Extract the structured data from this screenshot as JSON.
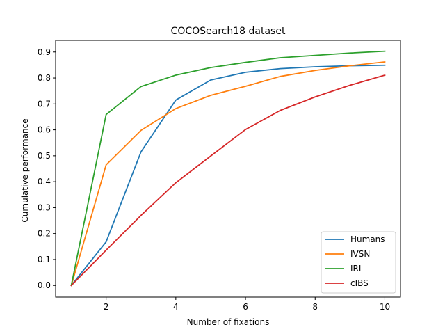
{
  "chart_data": {
    "type": "line",
    "title": "COCOSearch18 dataset",
    "xlabel": "Number of fixations",
    "ylabel": "Cumulative performance",
    "xlim": [
      0.55,
      10.45
    ],
    "ylim": [
      -0.045,
      0.945
    ],
    "xticks": [
      2,
      4,
      6,
      8,
      10
    ],
    "yticks": [
      0.0,
      0.1,
      0.2,
      0.3,
      0.4,
      0.5,
      0.6,
      0.7,
      0.8,
      0.9
    ],
    "ytick_labels": [
      "0.0",
      "0.1",
      "0.2",
      "0.3",
      "0.4",
      "0.5",
      "0.6",
      "0.7",
      "0.8",
      "0.9"
    ],
    "grid": false,
    "legend_position": "lower-right",
    "x": [
      1,
      2,
      3,
      4,
      5,
      6,
      7,
      8,
      9,
      10
    ],
    "series": [
      {
        "name": "Humans",
        "color": "#1f77b4",
        "values": [
          0.0,
          0.168,
          0.515,
          0.715,
          0.792,
          0.822,
          0.836,
          0.843,
          0.847,
          0.849
        ]
      },
      {
        "name": "IVSN",
        "color": "#ff7f0e",
        "values": [
          0.0,
          0.465,
          0.598,
          0.682,
          0.733,
          0.768,
          0.806,
          0.829,
          0.847,
          0.862
        ]
      },
      {
        "name": "IRL",
        "color": "#2ca02c",
        "values": [
          0.0,
          0.659,
          0.767,
          0.811,
          0.84,
          0.86,
          0.878,
          0.887,
          0.896,
          0.903
        ]
      },
      {
        "name": "cIBS",
        "color": "#d62728",
        "values": [
          0.0,
          0.136,
          0.27,
          0.396,
          0.499,
          0.601,
          0.675,
          0.727,
          0.772,
          0.811
        ]
      }
    ]
  }
}
